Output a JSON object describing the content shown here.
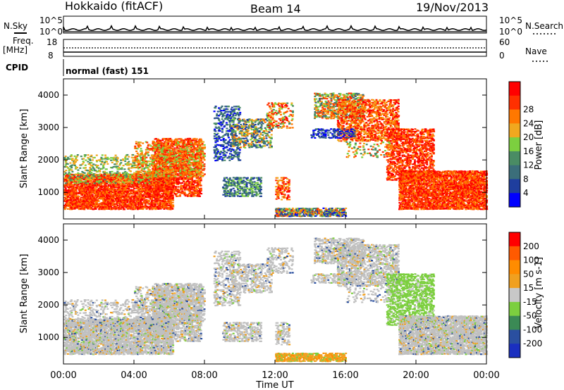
{
  "header": {
    "station": "Hokkaido (fitACF)",
    "beam": "Beam 14",
    "date": "19/Nov/2013"
  },
  "noise_panel": {
    "left_label": "N.Sky",
    "right_label": "N.Search",
    "ticks": [
      "10^5",
      "10^0"
    ],
    "right_ticks": [
      "10^5",
      "10^0"
    ]
  },
  "freq_panel": {
    "left_label_line1": "Freq.",
    "left_label_line2": "[MHz]",
    "ticks": [
      "18",
      "8"
    ],
    "right_label": "Nave",
    "right_ticks": [
      "60",
      "0"
    ]
  },
  "cpid_panel": {
    "label": "CPID",
    "text": "normal (fast) 151"
  },
  "x_axis": {
    "label": "Time UT",
    "ticks": [
      "00:00",
      "04:00",
      "08:00",
      "12:00",
      "16:00",
      "20:00",
      "00:00"
    ]
  },
  "colors": {
    "power_scale": [
      "#0000ff",
      "#1f3e9e",
      "#3b6e7a",
      "#4a8c64",
      "#7ccf3f",
      "#f0a81f",
      "#ff7800",
      "#ff3000",
      "#ff0000"
    ],
    "velocity_scale": [
      "#ff0000",
      "#ff5a00",
      "#ff8c00",
      "#f0a020",
      "#c8c8c8",
      "#7ccf3f",
      "#3b8a55",
      "#2a4fa0",
      "#1a2fc0"
    ],
    "ground_scatter": "#c0c0c0"
  },
  "chart_data": [
    {
      "type": "heatmap",
      "name": "Power",
      "ylabel": "Slant Range [km]",
      "y_ticks": [
        "1000",
        "2000",
        "3000",
        "4000"
      ],
      "colorbar_label": "Power [dB]",
      "colorbar_ticks": [
        "4",
        "8",
        "12",
        "16",
        "20",
        "24",
        "28"
      ],
      "ylim": [
        180,
        4500
      ],
      "xlim_hours": [
        0,
        24
      ]
    },
    {
      "type": "heatmap",
      "name": "Velocity",
      "ylabel": "Slant Range [km]",
      "y_ticks": [
        "1000",
        "2000",
        "3000",
        "4000"
      ],
      "colorbar_label": "Velocity [m s-1]",
      "colorbar_ticks": [
        "200",
        "100",
        "50",
        "15",
        "-15",
        "-50",
        "-100",
        "-200"
      ],
      "ylim": [
        180,
        4500
      ],
      "xlim_hours": [
        0,
        24
      ]
    }
  ]
}
